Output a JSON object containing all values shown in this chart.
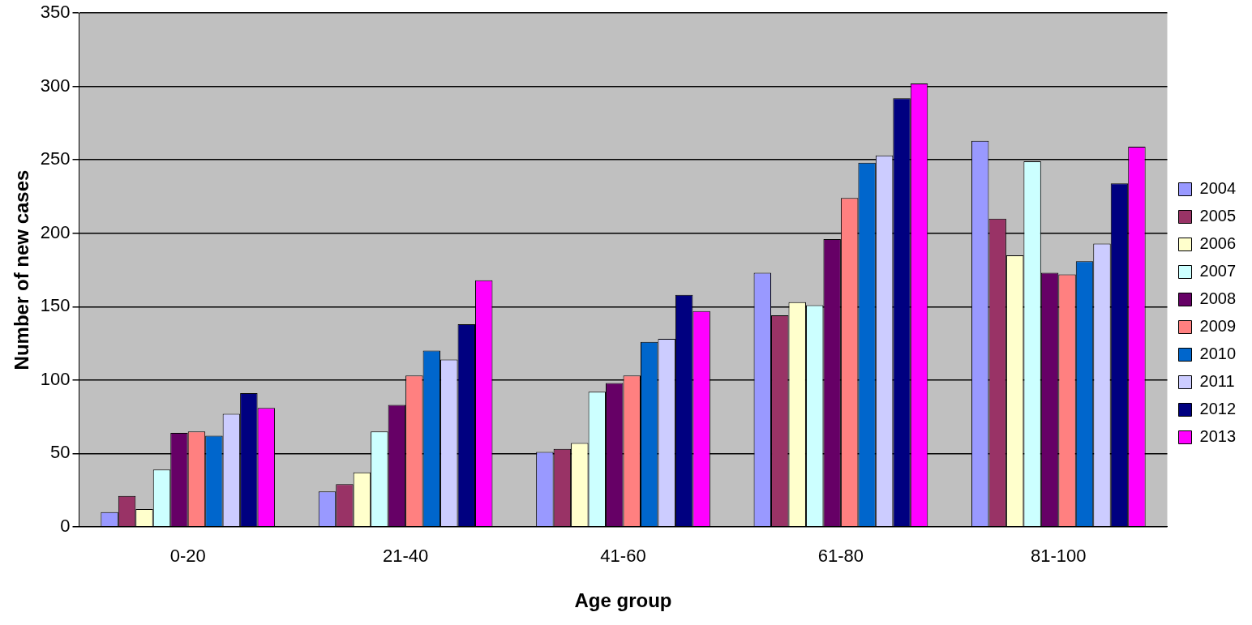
{
  "chart_data": {
    "type": "bar",
    "xlabel": "Age group",
    "ylabel": "Number of new cases",
    "categories": [
      "0-20",
      "21-40",
      "41-60",
      "61-80",
      "81-100"
    ],
    "series": [
      {
        "name": "2004",
        "color": "#9999ff",
        "values": [
          10,
          24,
          51,
          173,
          263
        ]
      },
      {
        "name": "2005",
        "color": "#993366",
        "values": [
          21,
          29,
          53,
          144,
          210
        ]
      },
      {
        "name": "2006",
        "color": "#ffffcc",
        "values": [
          12,
          37,
          57,
          153,
          185
        ]
      },
      {
        "name": "2007",
        "color": "#ccffff",
        "values": [
          39,
          65,
          92,
          151,
          249
        ]
      },
      {
        "name": "2008",
        "color": "#660066",
        "values": [
          64,
          83,
          98,
          196,
          173
        ]
      },
      {
        "name": "2009",
        "color": "#ff8080",
        "values": [
          65,
          103,
          103,
          224,
          172
        ]
      },
      {
        "name": "2010",
        "color": "#0066cc",
        "values": [
          62,
          120,
          126,
          248,
          181
        ]
      },
      {
        "name": "2011",
        "color": "#ccccff",
        "values": [
          77,
          114,
          128,
          253,
          193
        ]
      },
      {
        "name": "2012",
        "color": "#000080",
        "values": [
          91,
          138,
          158,
          292,
          234
        ]
      },
      {
        "name": "2013",
        "color": "#ff00ff",
        "values": [
          81,
          168,
          147,
          302,
          259
        ]
      }
    ],
    "ylim": [
      0,
      350
    ],
    "yticks": [
      0,
      50,
      100,
      150,
      200,
      250,
      300,
      350
    ],
    "grid": "y",
    "legend": "right"
  }
}
